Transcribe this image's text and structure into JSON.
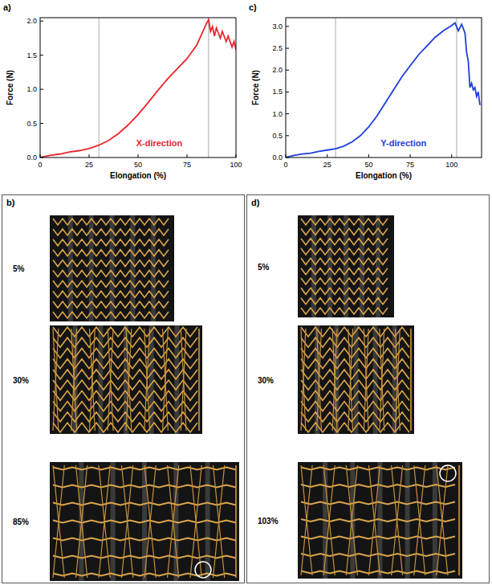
{
  "chart_data": [
    {
      "type": "line",
      "title": "a)",
      "x_label": "Elongation (%)",
      "y_label": "Force (N)",
      "xlim": [
        0,
        100
      ],
      "ylim": [
        0,
        2.05
      ],
      "xticks": [
        0,
        25,
        50,
        75,
        100
      ],
      "yticks": [
        {
          "value": 0,
          "label": "0.0"
        },
        {
          "value": 0.5,
          "label": "0.5"
        },
        {
          "value": 1,
          "label": "1.0"
        },
        {
          "value": 1.5,
          "label": "1.5"
        },
        {
          "value": 2,
          "label": "2.0"
        }
      ],
      "vlines": [
        30,
        86
      ],
      "x": [
        0,
        5,
        10,
        15,
        20,
        25,
        30,
        35,
        40,
        45,
        50,
        55,
        60,
        65,
        70,
        75,
        80,
        85,
        86,
        87,
        88,
        89,
        90,
        92,
        93,
        95,
        96,
        98,
        99,
        100
      ],
      "series": [
        {
          "name": "X-direction",
          "color": "#e8262b",
          "values": [
            0,
            0.03,
            0.05,
            0.08,
            0.1,
            0.13,
            0.18,
            0.25,
            0.35,
            0.48,
            0.63,
            0.8,
            0.98,
            1.15,
            1.3,
            1.45,
            1.65,
            1.97,
            2.02,
            1.85,
            1.92,
            1.78,
            1.9,
            1.75,
            1.85,
            1.7,
            1.78,
            1.62,
            1.7,
            1.58
          ]
        }
      ]
    },
    {
      "type": "line",
      "title": "c)",
      "x_label": "Elongation (%)",
      "y_label": "Force (N)",
      "xlim": [
        0,
        118
      ],
      "ylim": [
        0,
        3.2
      ],
      "xticks": [
        0,
        25,
        50,
        75,
        100
      ],
      "yticks": [
        {
          "value": 0,
          "label": "0.0"
        },
        {
          "value": 0.5,
          "label": "0.5"
        },
        {
          "value": 1,
          "label": "1.0"
        },
        {
          "value": 1.5,
          "label": "1.5"
        },
        {
          "value": 2,
          "label": "2.0"
        },
        {
          "value": 2.5,
          "label": "2.5"
        },
        {
          "value": 3,
          "label": "3.0"
        }
      ],
      "vlines": [
        30,
        103
      ],
      "x": [
        0,
        5,
        10,
        15,
        20,
        25,
        30,
        35,
        40,
        45,
        50,
        55,
        60,
        65,
        70,
        75,
        80,
        85,
        90,
        95,
        100,
        102,
        104,
        106,
        108,
        109,
        110,
        111,
        112,
        113,
        114,
        115,
        116,
        117
      ],
      "series": [
        {
          "name": "Y-direction",
          "color": "#1e3ed8",
          "values": [
            0,
            0.05,
            0.08,
            0.1,
            0.14,
            0.17,
            0.2,
            0.26,
            0.36,
            0.5,
            0.7,
            0.95,
            1.25,
            1.55,
            1.85,
            2.1,
            2.35,
            2.55,
            2.75,
            2.9,
            3.02,
            3.08,
            2.9,
            3.05,
            2.85,
            2.4,
            2.2,
            1.6,
            1.7,
            1.55,
            1.6,
            1.4,
            1.5,
            1.2
          ]
        }
      ]
    }
  ],
  "image_panels": [
    {
      "letter": "b)",
      "photos": [
        "5%",
        "30%",
        "85%"
      ]
    },
    {
      "letter": "d)",
      "photos": [
        "5%",
        "30%",
        "103%"
      ]
    }
  ]
}
